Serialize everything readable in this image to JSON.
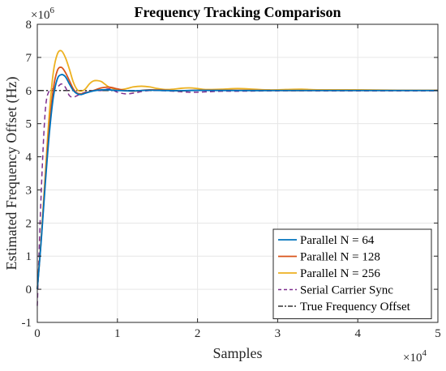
{
  "chart_data": {
    "type": "line",
    "title": "Frequency Tracking Comparison",
    "xlabel": "Samples",
    "ylabel": "Estimated Frequency Offset (Hz)",
    "xlim": [
      0,
      50000
    ],
    "ylim": [
      -1000000,
      8000000
    ],
    "x_ticks": [
      0,
      10000,
      20000,
      30000,
      40000,
      50000
    ],
    "x_tick_labels": [
      "0",
      "1",
      "2",
      "3",
      "4",
      "5"
    ],
    "y_ticks": [
      -1000000,
      0,
      1000000,
      2000000,
      3000000,
      4000000,
      5000000,
      6000000,
      7000000,
      8000000
    ],
    "y_tick_labels": [
      "-1",
      "0",
      "1",
      "2",
      "3",
      "4",
      "5",
      "6",
      "7",
      "8"
    ],
    "x_exponent_base": "×10",
    "x_exponent_power": "4",
    "y_exponent_base": "×10",
    "y_exponent_power": "6",
    "grid": true,
    "legend_position": "bottom-right",
    "series": [
      {
        "name": "Parallel N = 64",
        "color": "#0072BD",
        "style": "solid",
        "x": [
          0,
          500,
          1000,
          1500,
          2000,
          2500,
          3000,
          3500,
          4000,
          4500,
          5000,
          5500,
          6000,
          7000,
          8000,
          9000,
          10000,
          12000,
          14000,
          16000,
          18000,
          20000,
          25000,
          30000,
          35000,
          40000,
          45000,
          50000
        ],
        "y": [
          0,
          1500000,
          3200000,
          4700000,
          5800000,
          6350000,
          6480000,
          6420000,
          6200000,
          6000000,
          5900000,
          5880000,
          5920000,
          5990000,
          6020000,
          6020000,
          6000000,
          5990000,
          6010000,
          6000000,
          5995000,
          6005000,
          6000000,
          6000000,
          6000000,
          6000000,
          6000000,
          6000000
        ]
      },
      {
        "name": "Parallel N = 128",
        "color": "#D95319",
        "style": "solid",
        "x": [
          0,
          500,
          1000,
          1500,
          2000,
          2500,
          3000,
          3500,
          4000,
          4500,
          5000,
          5500,
          6000,
          7000,
          8000,
          9000,
          10000,
          11000,
          12000,
          14000,
          16000,
          18000,
          20000,
          25000,
          30000,
          35000,
          40000,
          45000,
          50000
        ],
        "y": [
          0,
          1550000,
          3300000,
          4900000,
          6050000,
          6600000,
          6700000,
          6550000,
          6300000,
          6050000,
          5920000,
          5900000,
          5930000,
          6000000,
          6080000,
          6100000,
          6050000,
          6000000,
          5980000,
          6020000,
          6010000,
          5990000,
          6010000,
          6005000,
          6000000,
          6000000,
          6000000,
          6000000,
          6000000
        ]
      },
      {
        "name": "Parallel N = 256",
        "color": "#EDB120",
        "style": "solid",
        "x": [
          0,
          500,
          1000,
          1500,
          2000,
          2500,
          3000,
          3500,
          4000,
          4500,
          5000,
          5500,
          6000,
          6500,
          7000,
          7500,
          8000,
          8500,
          9000,
          10000,
          11000,
          12000,
          13000,
          14000,
          15000,
          16000,
          17000,
          18000,
          19000,
          20000,
          21000,
          23000,
          25000,
          27000,
          29000,
          31000,
          33000,
          35000,
          40000,
          45000,
          50000
        ],
        "y": [
          0,
          1600000,
          3500000,
          5300000,
          6550000,
          7100000,
          7200000,
          7000000,
          6650000,
          6250000,
          6020000,
          5980000,
          6050000,
          6200000,
          6290000,
          6300000,
          6270000,
          6180000,
          6100000,
          6030000,
          6050000,
          6110000,
          6130000,
          6110000,
          6060000,
          6030000,
          6040000,
          6070000,
          6080000,
          6060000,
          6030000,
          6040000,
          6060000,
          6040000,
          6020000,
          6030000,
          6040000,
          6020000,
          6020000,
          6010000,
          6010000
        ]
      },
      {
        "name": "Serial Carrier Sync",
        "color": "#7E2F8E",
        "style": "dashed",
        "x": [
          0,
          500,
          1000,
          1500,
          2000,
          2500,
          3000,
          3500,
          4000,
          4500,
          5000,
          6000,
          7000,
          8000,
          9000,
          10000,
          11000,
          12000,
          13000,
          14000,
          15000,
          17000,
          19000,
          21000,
          23000,
          25000,
          30000,
          35000,
          40000,
          45000,
          50000
        ],
        "y": [
          -500000,
          3000000,
          5400000,
          6000000,
          6050000,
          6100000,
          6200000,
          6100000,
          5850000,
          5800000,
          5850000,
          5950000,
          6000000,
          6000000,
          6050000,
          5950000,
          5900000,
          5920000,
          5970000,
          6000000,
          6000000,
          5980000,
          5950000,
          5960000,
          5980000,
          5980000,
          5990000,
          5990000,
          5990000,
          5990000,
          5990000
        ]
      },
      {
        "name": "True Frequency Offset",
        "color": "#333333",
        "style": "dashdot",
        "x": [
          0,
          50000
        ],
        "y": [
          6000000,
          6000000
        ]
      }
    ]
  }
}
